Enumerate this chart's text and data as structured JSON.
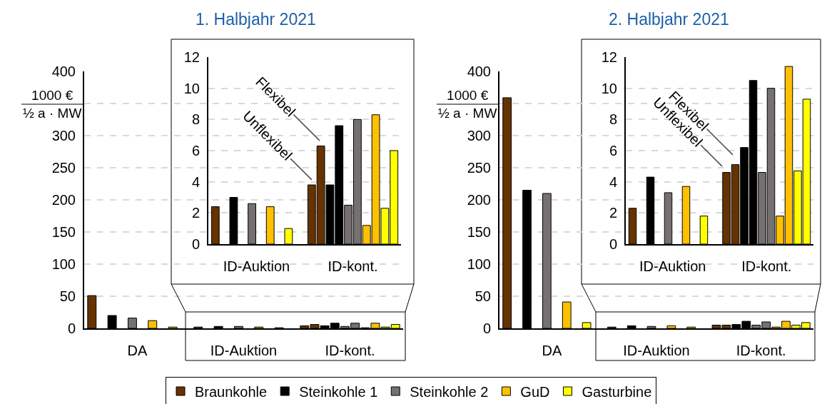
{
  "chart_data": [
    {
      "type": "bar",
      "title": "1. Halbjahr 2021",
      "ylabel": "1000 €\n½ a · MW",
      "categories": [
        "DA",
        "ID-Auktion",
        "ID-kont."
      ],
      "ylim": [
        0,
        400
      ],
      "yticks": [
        0,
        50,
        100,
        150,
        200,
        250,
        300,
        {
          "value": 350,
          "label": null
        },
        400
      ],
      "grid": "y",
      "legend": "bottom",
      "series": [
        {
          "name": "Braunkohle",
          "color": "#663300",
          "values": [
            51,
            2,
            4
          ]
        },
        {
          "color": "#663300",
          "values": [
            null,
            null,
            6
          ]
        },
        {
          "name": "Steinkohle 1",
          "color": "#000000",
          "values": [
            20,
            3,
            4
          ]
        },
        {
          "color": "#000000",
          "values": [
            null,
            null,
            8
          ]
        },
        {
          "name": "Steinkohle 2",
          "color": "#767171",
          "values": [
            16,
            3,
            3
          ]
        },
        {
          "color": "#767171",
          "values": [
            null,
            null,
            8
          ]
        },
        {
          "name": "GuD",
          "color": "#ffc000",
          "values": [
            12,
            2,
            1
          ]
        },
        {
          "color": "#ffc000",
          "values": [
            null,
            null,
            8
          ]
        },
        {
          "name": "Gasturbine",
          "color": "#ffff00",
          "values": [
            2,
            1,
            2
          ]
        },
        {
          "color": "#ffff00",
          "values": [
            null,
            null,
            6
          ]
        }
      ]
    },
    {
      "type": "bar",
      "categories": [
        "ID-Auktion",
        "ID-kont."
      ],
      "ylim": [
        0,
        12
      ],
      "yticks": [
        0,
        2,
        4,
        6,
        8,
        10,
        12
      ],
      "grid": "y",
      "annotations": [
        "Flexibel",
        "Unflexibel"
      ],
      "series": [
        {
          "color": "#663300",
          "values": [
            2.4,
            3.8
          ]
        },
        {
          "color": "#663300",
          "values": [
            null,
            6.3
          ]
        },
        {
          "color": "#000000",
          "values": [
            3.0,
            3.8
          ]
        },
        {
          "color": "#000000",
          "values": [
            null,
            7.6
          ]
        },
        {
          "color": "#767171",
          "values": [
            2.6,
            2.5
          ]
        },
        {
          "color": "#767171",
          "values": [
            null,
            8.0
          ]
        },
        {
          "color": "#ffc000",
          "values": [
            2.4,
            1.2
          ]
        },
        {
          "color": "#ffc000",
          "values": [
            null,
            8.3
          ]
        },
        {
          "color": "#ffff00",
          "values": [
            1.0,
            2.3
          ]
        },
        {
          "color": "#ffff00",
          "values": [
            null,
            6.0
          ]
        }
      ]
    },
    {
      "type": "bar",
      "title": "2. Halbjahr 2021",
      "ylabel": "1000 €\n½ a · MW",
      "categories": [
        "DA",
        "ID-Auktion",
        "ID-kont."
      ],
      "ylim": [
        0,
        400
      ],
      "yticks": [
        0,
        50,
        100,
        150,
        200,
        250,
        300,
        {
          "value": 350,
          "label": null
        },
        400
      ],
      "grid": "y",
      "series": [
        {
          "color": "#663300",
          "values": [
            359,
            2,
            5
          ]
        },
        {
          "color": "#663300",
          "values": [
            null,
            null,
            5
          ]
        },
        {
          "color": "#000000",
          "values": [
            215,
            4,
            6
          ]
        },
        {
          "color": "#000000",
          "values": [
            null,
            null,
            11
          ]
        },
        {
          "color": "#767171",
          "values": [
            210,
            3,
            5
          ]
        },
        {
          "color": "#767171",
          "values": [
            null,
            null,
            10
          ]
        },
        {
          "color": "#ffc000",
          "values": [
            41,
            4,
            2
          ]
        },
        {
          "color": "#ffc000",
          "values": [
            null,
            null,
            11
          ]
        },
        {
          "color": "#ffff00",
          "values": [
            9,
            2,
            5
          ]
        },
        {
          "color": "#ffff00",
          "values": [
            null,
            null,
            9
          ]
        }
      ]
    },
    {
      "type": "bar",
      "categories": [
        "ID-Auktion",
        "ID-kont."
      ],
      "ylim": [
        0,
        12
      ],
      "yticks": [
        0,
        2,
        4,
        6,
        8,
        10,
        12
      ],
      "grid": "y",
      "annotations": [
        "Flexibel",
        "Unflexibel"
      ],
      "series": [
        {
          "color": "#663300",
          "values": [
            2.3,
            4.6
          ]
        },
        {
          "color": "#663300",
          "values": [
            null,
            5.1
          ]
        },
        {
          "color": "#000000",
          "values": [
            4.3,
            6.2
          ]
        },
        {
          "color": "#000000",
          "values": [
            null,
            10.5
          ]
        },
        {
          "color": "#767171",
          "values": [
            3.3,
            4.6
          ]
        },
        {
          "color": "#767171",
          "values": [
            null,
            10.0
          ]
        },
        {
          "color": "#ffc000",
          "values": [
            3.7,
            1.8
          ]
        },
        {
          "color": "#ffc000",
          "values": [
            null,
            11.4
          ]
        },
        {
          "color": "#ffff00",
          "values": [
            1.8,
            4.7
          ]
        },
        {
          "color": "#ffff00",
          "values": [
            null,
            9.3
          ]
        }
      ]
    }
  ]
}
